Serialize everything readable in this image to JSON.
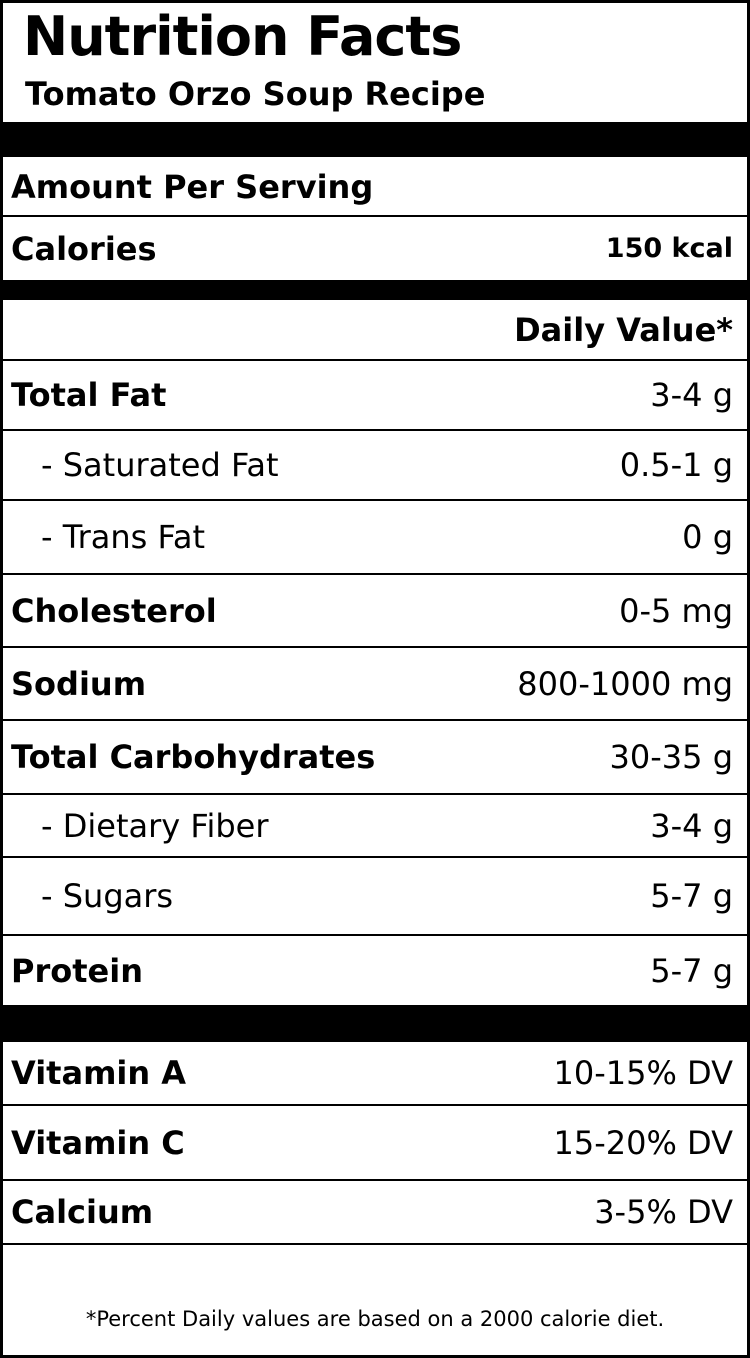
{
  "title": "Nutrition Facts",
  "subtitle": "Tomato Orzo Soup Recipe",
  "amount_per_serving": "Amount Per Serving",
  "calories": {
    "label": "Calories",
    "value": "150 kcal"
  },
  "daily_value_header": "Daily Value*",
  "nutrients": [
    {
      "label": "Total Fat",
      "value": "3-4 g"
    },
    {
      "label": "- Saturated Fat",
      "value": "0.5-1 g"
    },
    {
      "label": "- Trans Fat",
      "value": "0 g"
    },
    {
      "label": "Cholesterol",
      "value": "0-5 mg"
    },
    {
      "label": "Sodium",
      "value": "800-1000 mg"
    },
    {
      "label": "Total Carbohydrates",
      "value": "30-35 g"
    },
    {
      "label": "- Dietary Fiber",
      "value": "3-4 g"
    },
    {
      "label": "- Sugars",
      "value": "5-7 g"
    },
    {
      "label": "Protein",
      "value": "5-7 g"
    }
  ],
  "vitamins": [
    {
      "label": "Vitamin A",
      "value": "10-15% DV"
    },
    {
      "label": "Vitamin C",
      "value": "15-20% DV"
    },
    {
      "label": "Calcium",
      "value": "3-5% DV"
    }
  ],
  "footnote": "*Percent Daily values are based on a 2000 calorie diet."
}
